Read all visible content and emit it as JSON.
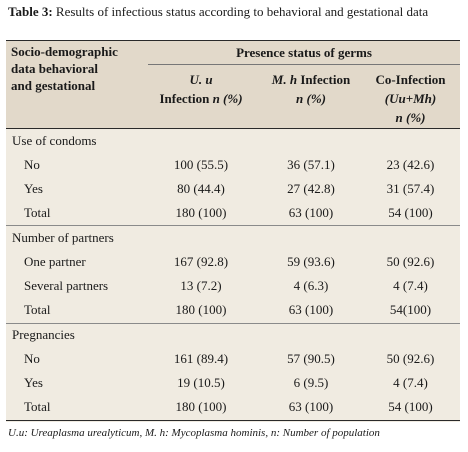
{
  "caption": {
    "label": "Table 3:",
    "text": " Results of infectious status according to behavioral and gestational data"
  },
  "header": {
    "left_line1": "Socio-demographic",
    "left_line2": "data behavioral",
    "left_line3": "and gestational",
    "group": "Presence status of germs",
    "col1_line1": "U. u",
    "col1_line2a": "Infection ",
    "col1_line2b": "n (%)",
    "col2_line1a": "M. h",
    "col2_line1b": " Infection",
    "col2_line2": "n (%)",
    "col3_line1": "Co-Infection",
    "col3_line2": "(Uu+Mh)",
    "col3_line3": "n (%)"
  },
  "sections": [
    {
      "title": "Use of condoms",
      "rows": [
        {
          "label": "No",
          "c1": "100 (55.5)",
          "c2": "36 (57.1)",
          "c3": "23 (42.6)"
        },
        {
          "label": "Yes",
          "c1": "80 (44.4)",
          "c2": "27 (42.8)",
          "c3": "31 (57.4)"
        },
        {
          "label": "Total",
          "c1": "180 (100)",
          "c2": "63 (100)",
          "c3": "54 (100)"
        }
      ]
    },
    {
      "title": "Number of partners",
      "rows": [
        {
          "label": "One partner",
          "c1": "167 (92.8)",
          "c2": "59 (93.6)",
          "c3": "50 (92.6)"
        },
        {
          "label": "Several partners",
          "c1": "13 (7.2)",
          "c2": "4 (6.3)",
          "c3": "4 (7.4)"
        },
        {
          "label": "Total",
          "c1": "180 (100)",
          "c2": "63 (100)",
          "c3": "54(100)"
        }
      ]
    },
    {
      "title": "Pregnancies",
      "rows": [
        {
          "label": "No",
          "c1": "161 (89.4)",
          "c2": "57 (90.5)",
          "c3": "50 (92.6)"
        },
        {
          "label": "Yes",
          "c1": "19 (10.5)",
          "c2": "6 (9.5)",
          "c3": "4 (7.4)"
        },
        {
          "label": "Total",
          "c1": "180 (100)",
          "c2": "63 (100)",
          "c3": "54 (100)"
        }
      ]
    }
  ],
  "footnote": "U.u: Ureaplasma urealyticum, M. h: Mycoplasma hominis, n: Number of population"
}
